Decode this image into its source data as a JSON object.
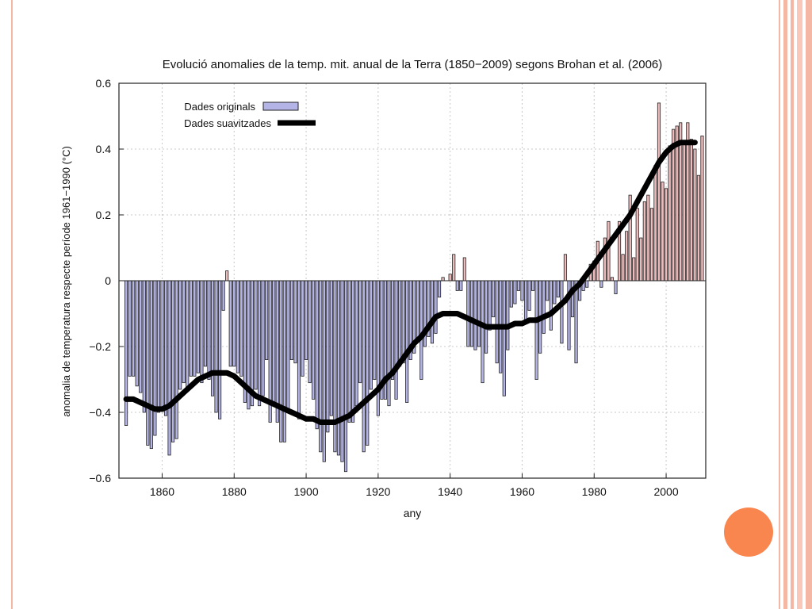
{
  "slide": {
    "accent_color": "#f4b7a4",
    "dot_color": "#f9864f"
  },
  "chart_data": {
    "type": "bar",
    "title": "Evolució anomalies de la temp. mit. anual de la Terra (1850−2009) segons Brohan et al. (2006)",
    "xlabel": "any",
    "ylabel": "anomalia de temperatura respecte període 1961−1990 (°C)",
    "xlim": [
      1848,
      2011
    ],
    "ylim": [
      -0.6,
      0.6
    ],
    "x_ticks": [
      1860,
      1880,
      1900,
      1920,
      1940,
      1960,
      1980,
      2000
    ],
    "y_ticks": [
      -0.6,
      -0.4,
      -0.2,
      0,
      0.2,
      0.4,
      0.6
    ],
    "y_tick_labels": [
      "−0.6",
      "−0.4",
      "−0.2",
      "0",
      "0.2",
      "0.4",
      "0.6"
    ],
    "grid": true,
    "legend_position": "top-left",
    "series": [
      {
        "name": "Dades originals",
        "type": "bar",
        "colors": {
          "negative": "#b4b4e6",
          "positive": "#eebcbc",
          "edge": "#222222"
        },
        "x_start": 1850,
        "values": [
          -0.44,
          -0.29,
          -0.29,
          -0.32,
          -0.34,
          -0.4,
          -0.5,
          -0.51,
          -0.47,
          -0.4,
          -0.39,
          -0.41,
          -0.53,
          -0.49,
          -0.48,
          -0.33,
          -0.31,
          -0.33,
          -0.29,
          -0.29,
          -0.28,
          -0.31,
          -0.26,
          -0.3,
          -0.35,
          -0.4,
          -0.42,
          -0.09,
          0.03,
          -0.26,
          -0.26,
          -0.28,
          -0.29,
          -0.37,
          -0.39,
          -0.38,
          -0.33,
          -0.38,
          -0.35,
          -0.24,
          -0.43,
          -0.37,
          -0.43,
          -0.49,
          -0.49,
          -0.4,
          -0.24,
          -0.25,
          -0.42,
          -0.29,
          -0.24,
          -0.31,
          -0.36,
          -0.45,
          -0.52,
          -0.55,
          -0.46,
          -0.41,
          -0.52,
          -0.53,
          -0.55,
          -0.58,
          -0.43,
          -0.43,
          -0.38,
          -0.31,
          -0.52,
          -0.5,
          -0.33,
          -0.3,
          -0.41,
          -0.36,
          -0.36,
          -0.38,
          -0.3,
          -0.36,
          -0.26,
          -0.25,
          -0.37,
          -0.24,
          -0.22,
          -0.18,
          -0.3,
          -0.2,
          -0.17,
          -0.19,
          -0.16,
          -0.05,
          0.01,
          0.0,
          0.02,
          0.08,
          -0.03,
          -0.03,
          0.07,
          -0.2,
          -0.2,
          -0.21,
          -0.2,
          -0.31,
          -0.22,
          -0.15,
          -0.11,
          -0.25,
          -0.28,
          -0.35,
          -0.21,
          -0.08,
          -0.07,
          -0.03,
          -0.06,
          -0.13,
          -0.09,
          -0.03,
          -0.3,
          -0.22,
          -0.16,
          -0.06,
          -0.15,
          -0.07,
          -0.05,
          -0.19,
          0.08,
          -0.21,
          -0.11,
          -0.25,
          -0.06,
          -0.03,
          -0.02,
          0.05,
          0.06,
          0.12,
          -0.02,
          0.13,
          0.18,
          0.01,
          -0.04,
          0.18,
          0.08,
          0.15,
          0.26,
          0.07,
          0.22,
          0.13,
          0.24,
          0.26,
          0.22,
          0.35,
          0.54,
          0.3,
          0.28,
          0.41,
          0.46,
          0.47,
          0.48,
          0.42,
          0.48,
          0.43,
          0.4,
          0.32,
          0.44
        ]
      },
      {
        "name": "Dades suavitzades",
        "type": "line",
        "color": "#000000",
        "x": [
          1850,
          1852,
          1854,
          1856,
          1858,
          1860,
          1862,
          1864,
          1866,
          1868,
          1870,
          1872,
          1874,
          1876,
          1878,
          1880,
          1882,
          1884,
          1886,
          1888,
          1890,
          1892,
          1894,
          1896,
          1898,
          1900,
          1902,
          1904,
          1906,
          1908,
          1910,
          1912,
          1914,
          1916,
          1918,
          1920,
          1922,
          1924,
          1926,
          1928,
          1930,
          1932,
          1934,
          1936,
          1938,
          1940,
          1942,
          1944,
          1946,
          1948,
          1950,
          1952,
          1954,
          1956,
          1958,
          1960,
          1962,
          1964,
          1966,
          1968,
          1970,
          1972,
          1974,
          1976,
          1978,
          1980,
          1982,
          1984,
          1986,
          1988,
          1990,
          1992,
          1994,
          1996,
          1998,
          2000,
          2002,
          2004,
          2006,
          2008
        ],
        "y": [
          -0.36,
          -0.36,
          -0.37,
          -0.38,
          -0.39,
          -0.39,
          -0.38,
          -0.36,
          -0.34,
          -0.32,
          -0.3,
          -0.29,
          -0.28,
          -0.28,
          -0.28,
          -0.29,
          -0.31,
          -0.33,
          -0.35,
          -0.36,
          -0.37,
          -0.38,
          -0.39,
          -0.4,
          -0.41,
          -0.42,
          -0.42,
          -0.43,
          -0.43,
          -0.43,
          -0.42,
          -0.41,
          -0.39,
          -0.37,
          -0.35,
          -0.33,
          -0.3,
          -0.28,
          -0.25,
          -0.22,
          -0.19,
          -0.17,
          -0.14,
          -0.11,
          -0.1,
          -0.1,
          -0.1,
          -0.11,
          -0.12,
          -0.13,
          -0.14,
          -0.14,
          -0.14,
          -0.14,
          -0.13,
          -0.13,
          -0.12,
          -0.12,
          -0.11,
          -0.1,
          -0.08,
          -0.06,
          -0.03,
          -0.01,
          0.02,
          0.05,
          0.08,
          0.11,
          0.14,
          0.17,
          0.2,
          0.24,
          0.28,
          0.32,
          0.36,
          0.39,
          0.41,
          0.42,
          0.42,
          0.42
        ]
      }
    ]
  }
}
